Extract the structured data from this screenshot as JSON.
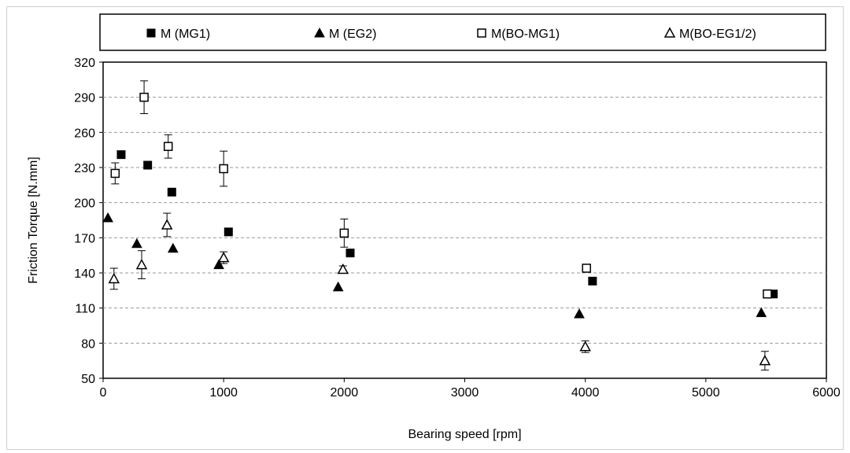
{
  "chart_data": {
    "type": "scatter",
    "title": "",
    "xlabel": "Bearing speed [rpm]",
    "ylabel": "Friction Torque [N.mm]",
    "xlim": [
      0,
      6000
    ],
    "ylim": [
      50,
      320
    ],
    "xticks": [
      0,
      1000,
      2000,
      3000,
      4000,
      5000,
      6000
    ],
    "yticks": [
      50,
      80,
      110,
      140,
      170,
      200,
      230,
      260,
      290,
      320
    ],
    "grid": "horizontal dashed",
    "legend_position": "top",
    "series": [
      {
        "name": "M (MG1)",
        "marker": "filled-square",
        "points": [
          {
            "x": 150,
            "y": 241
          },
          {
            "x": 370,
            "y": 232
          },
          {
            "x": 570,
            "y": 209
          },
          {
            "x": 1040,
            "y": 175
          },
          {
            "x": 2050,
            "y": 157
          },
          {
            "x": 4060,
            "y": 133
          },
          {
            "x": 5560,
            "y": 122
          }
        ]
      },
      {
        "name": "M (EG2)",
        "marker": "filled-triangle",
        "points": [
          {
            "x": 40,
            "y": 187
          },
          {
            "x": 280,
            "y": 165
          },
          {
            "x": 580,
            "y": 161
          },
          {
            "x": 960,
            "y": 147
          },
          {
            "x": 1950,
            "y": 128
          },
          {
            "x": 3950,
            "y": 105
          },
          {
            "x": 5460,
            "y": 106
          }
        ]
      },
      {
        "name": "M(BO-MG1)",
        "marker": "open-square",
        "points": [
          {
            "x": 100,
            "y": 225,
            "err": 9
          },
          {
            "x": 340,
            "y": 290,
            "err": 14
          },
          {
            "x": 540,
            "y": 248,
            "err": 10
          },
          {
            "x": 1000,
            "y": 229,
            "err": 15
          },
          {
            "x": 2000,
            "y": 174,
            "err": 12
          },
          {
            "x": 4010,
            "y": 144,
            "err": 0
          },
          {
            "x": 5510,
            "y": 122,
            "err": 0
          }
        ]
      },
      {
        "name": "M(BO-EG1/2)",
        "marker": "open-triangle",
        "points": [
          {
            "x": 90,
            "y": 135,
            "err": 9
          },
          {
            "x": 320,
            "y": 147,
            "err": 12
          },
          {
            "x": 530,
            "y": 181,
            "err": 10
          },
          {
            "x": 1000,
            "y": 153,
            "err": 5
          },
          {
            "x": 1990,
            "y": 143,
            "err": 3
          },
          {
            "x": 4000,
            "y": 77,
            "err": 5
          },
          {
            "x": 5490,
            "y": 65,
            "err": 8
          }
        ]
      }
    ]
  }
}
